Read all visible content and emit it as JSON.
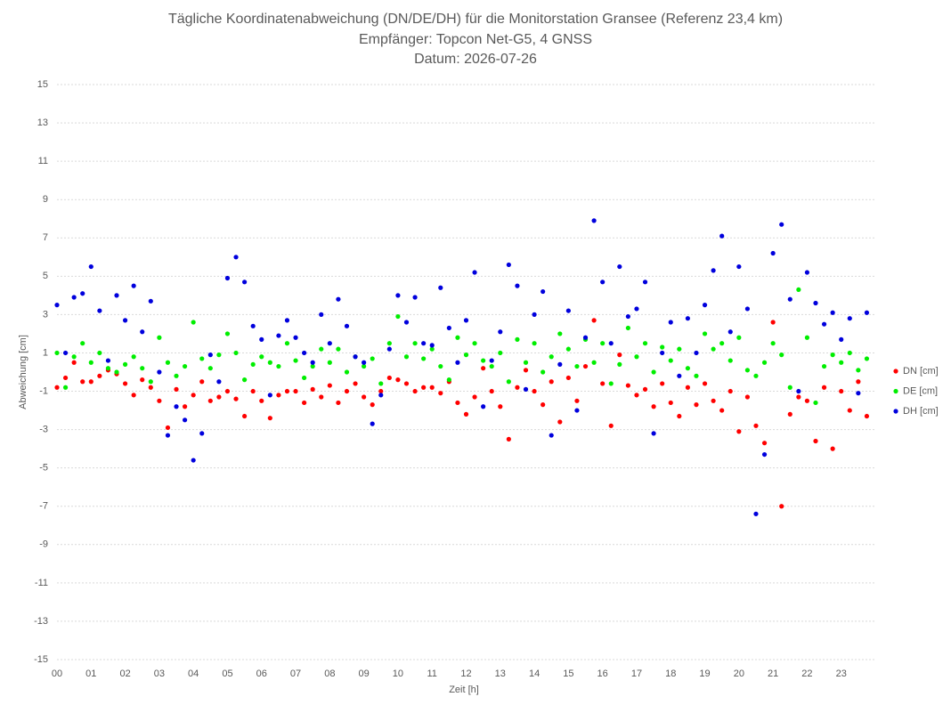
{
  "chart_data": {
    "type": "scatter",
    "title": "Tägliche Koordinatenabweichung (DN/DE/DH) für die Monitorstation Gransee (Referenz 23,4 km)",
    "subtitle": "Empfänger: Topcon Net-G5, 4 GNSS",
    "date_line": "Datum: 2026-07-26",
    "xlabel": "Zeit [h]",
    "ylabel": "Abweichung [cm]",
    "legend": "right",
    "grid": true,
    "xlim": [
      0,
      24
    ],
    "ylim": [
      -15,
      15
    ],
    "yticks": [
      -15,
      -13,
      -11,
      -9,
      -7,
      -5,
      -3,
      -1,
      1,
      3,
      5,
      7,
      9,
      11,
      13,
      15
    ],
    "xticks": [
      {
        "value": 0,
        "label": "00"
      },
      {
        "value": 1,
        "label": "01"
      },
      {
        "value": 2,
        "label": "02"
      },
      {
        "value": 3,
        "label": "03"
      },
      {
        "value": 4,
        "label": "04"
      },
      {
        "value": 5,
        "label": "05"
      },
      {
        "value": 6,
        "label": "06"
      },
      {
        "value": 7,
        "label": "07"
      },
      {
        "value": 8,
        "label": "08"
      },
      {
        "value": 9,
        "label": "09"
      },
      {
        "value": 10,
        "label": "10"
      },
      {
        "value": 11,
        "label": "11"
      },
      {
        "value": 12,
        "label": "12"
      },
      {
        "value": 13,
        "label": "13"
      },
      {
        "value": 14,
        "label": "14"
      },
      {
        "value": 15,
        "label": "15"
      },
      {
        "value": 16,
        "label": "16"
      },
      {
        "value": 17,
        "label": "17"
      },
      {
        "value": 18,
        "label": "18"
      },
      {
        "value": 19,
        "label": "19"
      },
      {
        "value": 20,
        "label": "20"
      },
      {
        "value": 21,
        "label": "21"
      },
      {
        "value": 22,
        "label": "22"
      },
      {
        "value": 23,
        "label": "23"
      }
    ],
    "x": [
      0,
      0.25,
      0.5,
      0.75,
      1,
      1.25,
      1.5,
      1.75,
      2,
      2.25,
      2.5,
      2.75,
      3,
      3.25,
      3.5,
      3.75,
      4,
      4.25,
      4.5,
      4.75,
      5,
      5.25,
      5.5,
      5.75,
      6,
      6.25,
      6.5,
      6.75,
      7,
      7.25,
      7.5,
      7.75,
      8,
      8.25,
      8.5,
      8.75,
      9,
      9.25,
      9.5,
      9.75,
      10,
      10.25,
      10.5,
      10.75,
      11,
      11.25,
      11.5,
      11.75,
      12,
      12.25,
      12.5,
      12.75,
      13,
      13.25,
      13.5,
      13.75,
      14,
      14.25,
      14.5,
      14.75,
      15,
      15.25,
      15.5,
      15.75,
      16,
      16.25,
      16.5,
      16.75,
      17,
      17.25,
      17.5,
      17.75,
      18,
      18.25,
      18.5,
      18.75,
      19,
      19.25,
      19.5,
      19.75,
      20,
      20.25,
      20.5,
      20.75,
      21,
      21.25,
      21.5,
      21.75,
      22,
      22.25,
      22.5,
      22.75,
      23,
      23.25,
      23.5,
      23.75
    ],
    "series": [
      {
        "name": "DN [cm]",
        "color": "#ff0000",
        "values": [
          -0.8,
          -0.3,
          0.5,
          -0.5,
          -0.5,
          -0.2,
          0.1,
          -0.1,
          -0.6,
          -1.2,
          -0.4,
          -0.8,
          -1.5,
          -2.9,
          -0.9,
          -1.8,
          -1.2,
          -0.5,
          -1.5,
          -1.3,
          -1.0,
          -1.4,
          -2.3,
          -1.0,
          -1.5,
          -2.4,
          -1.2,
          -1.0,
          -1.0,
          -1.6,
          -0.9,
          -1.3,
          -0.7,
          -1.6,
          -1.0,
          -0.6,
          -1.3,
          -1.7,
          -1.0,
          -0.3,
          -0.4,
          -0.6,
          -1.0,
          -0.8,
          -0.8,
          -1.1,
          -0.5,
          -1.6,
          -2.2,
          -1.3,
          0.2,
          -1.0,
          -1.8,
          -3.5,
          -0.8,
          0.1,
          -1.0,
          -1.7,
          -0.5,
          -2.6,
          -0.3,
          -1.5,
          0.3,
          2.7,
          -0.6,
          -2.8,
          0.9,
          -0.7,
          -1.2,
          -0.9,
          -1.8,
          -0.6,
          -1.6,
          -2.3,
          -0.8,
          -1.7,
          -0.6,
          -1.5,
          -2.0,
          -1.0,
          -3.1,
          -1.3,
          -2.8,
          -3.7,
          2.6,
          -7.0,
          -2.2,
          -1.3,
          -1.5,
          -3.6,
          -0.8,
          -4.0,
          -1.0,
          -2.0,
          -0.5,
          -2.3
        ]
      },
      {
        "name": "DE [cm]",
        "color": "#00ee00",
        "values": [
          1.0,
          -0.8,
          0.8,
          1.5,
          0.5,
          1.0,
          0.2,
          0.0,
          0.4,
          0.8,
          0.2,
          -0.5,
          1.8,
          0.5,
          -0.2,
          0.3,
          2.6,
          0.7,
          0.2,
          0.9,
          2.0,
          1.0,
          -0.4,
          0.4,
          0.8,
          0.5,
          0.3,
          1.5,
          0.6,
          -0.3,
          0.3,
          1.2,
          0.5,
          1.2,
          0.0,
          0.8,
          0.3,
          0.7,
          -0.6,
          1.5,
          2.9,
          0.8,
          1.5,
          0.7,
          1.2,
          0.3,
          -0.4,
          1.8,
          0.9,
          1.5,
          0.6,
          0.3,
          1.0,
          -0.5,
          1.7,
          0.5,
          1.5,
          0.0,
          0.8,
          2.0,
          1.2,
          0.3,
          1.7,
          0.5,
          1.5,
          -0.6,
          0.4,
          2.3,
          0.8,
          1.5,
          0.0,
          1.3,
          0.6,
          1.2,
          0.2,
          -0.2,
          2.0,
          1.2,
          1.5,
          0.6,
          1.8,
          0.1,
          -0.2,
          0.5,
          1.5,
          0.9,
          -0.8,
          4.3,
          1.8,
          -1.6,
          0.3,
          0.9,
          0.5,
          1.0,
          0.1,
          0.7
        ]
      },
      {
        "name": "DH [cm]",
        "color": "#0000dd",
        "values": [
          3.5,
          1.0,
          3.9,
          4.1,
          5.5,
          3.2,
          0.6,
          4.0,
          2.7,
          4.5,
          2.1,
          3.7,
          0.0,
          -3.3,
          -1.8,
          -2.5,
          -4.6,
          -3.2,
          0.9,
          -0.5,
          4.9,
          6.0,
          4.7,
          2.4,
          1.7,
          -1.2,
          1.9,
          2.7,
          1.8,
          1.0,
          0.5,
          3.0,
          1.5,
          3.8,
          2.4,
          0.8,
          0.5,
          -2.7,
          -1.2,
          1.2,
          4.0,
          2.6,
          3.9,
          1.5,
          1.4,
          4.4,
          2.3,
          0.5,
          2.7,
          5.2,
          -1.8,
          0.6,
          2.1,
          5.6,
          4.5,
          -0.9,
          3.0,
          4.2,
          -3.3,
          0.4,
          3.2,
          -2.0,
          1.8,
          7.9,
          4.7,
          1.5,
          5.5,
          2.9,
          3.3,
          4.7,
          -3.2,
          1.0,
          2.6,
          -0.2,
          2.8,
          1.0,
          3.5,
          5.3,
          7.1,
          2.1,
          5.5,
          3.3,
          -7.4,
          -4.3,
          6.2,
          7.7,
          3.8,
          -1.0,
          5.2,
          3.6,
          2.5,
          3.1,
          1.7,
          2.8,
          -1.1,
          3.1
        ]
      }
    ]
  }
}
